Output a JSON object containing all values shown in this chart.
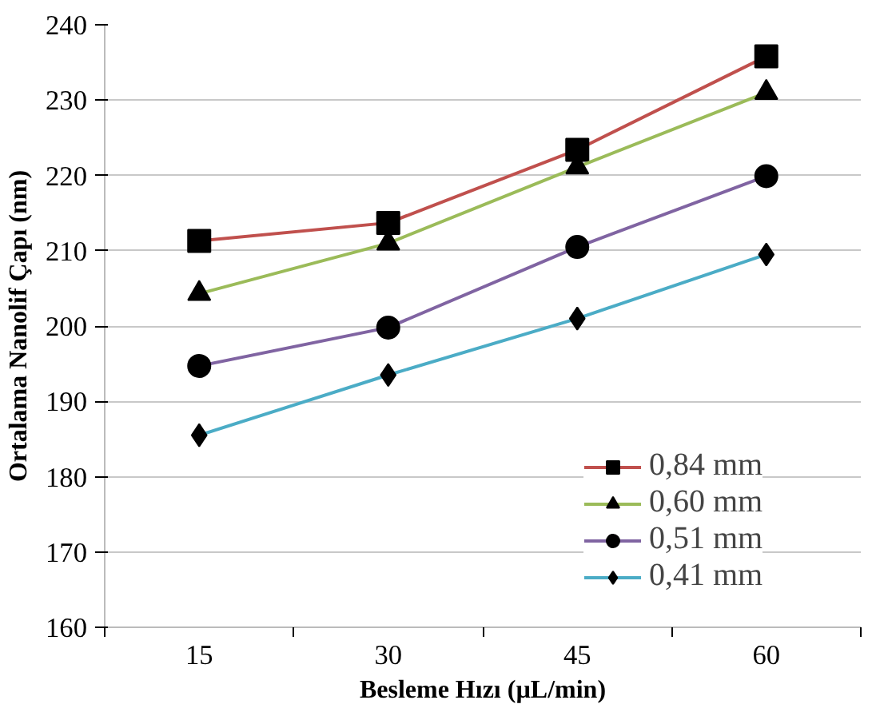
{
  "chart_data": {
    "type": "line",
    "xlabel": "Besleme Hızı (µL/min)",
    "ylabel": "Ortalama Nanolif Çapı (nm)",
    "categories": [
      "15",
      "30",
      "45",
      "60"
    ],
    "series": [
      {
        "name": "0,84 mm",
        "color": "#c0504d",
        "marker": "square",
        "values": [
          211.3,
          213.7,
          223.4,
          235.8
        ]
      },
      {
        "name": "0,60 mm",
        "color": "#9bbb59",
        "marker": "triangle",
        "values": [
          204.3,
          211.0,
          221.1,
          231.0
        ]
      },
      {
        "name": "0,51 mm",
        "color": "#8064a2",
        "marker": "circle",
        "values": [
          194.7,
          199.8,
          210.5,
          219.9
        ]
      },
      {
        "name": "0,41 mm",
        "color": "#4bacc6",
        "marker": "diamond",
        "values": [
          185.5,
          193.5,
          201.0,
          209.5
        ]
      }
    ],
    "ylim": [
      160,
      240
    ],
    "yticks": [
      160,
      170,
      180,
      190,
      200,
      210,
      220,
      230,
      240
    ],
    "grid": "y",
    "legend": "right"
  }
}
